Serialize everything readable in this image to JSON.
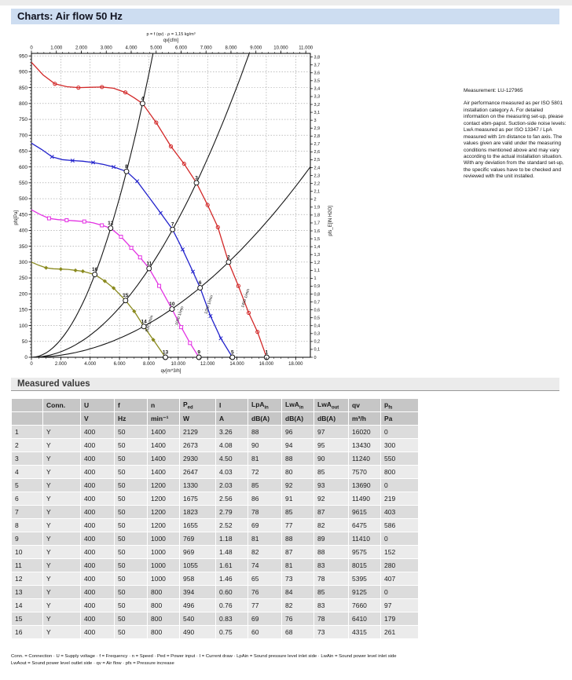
{
  "header": {
    "title": "Charts: Air flow 50 Hz"
  },
  "notes": {
    "measurement": "Measurement: LU-127965",
    "body": "Air performance measured as per ISO 5801 installation category A. For detailed information on the measuring set-up, please contact ebm-papst. Suction-side noise levels: LwA measured as per ISO 13347 / LpA measured with 1m distance to fan axis. The values given are valid under the measuring conditions mentioned above and may vary according to the actual installation situation. With any deviation from the standard set-up, the specific values have to be checked and reviewed with the unit installed."
  },
  "chart_data": {
    "type": "line",
    "title": "p = f (qv) · ρ = 1,15 kg/m³",
    "top_axis": {
      "label": "qv[cfm]",
      "tick_values": [
        0,
        1000,
        2000,
        3000,
        4000,
        5000,
        6000,
        7000,
        8000,
        9000,
        10000,
        11000
      ],
      "tick_labels": [
        "0",
        "1.000",
        "2.000",
        "3.000",
        "4.000",
        "5.000",
        "6.000",
        "7.000",
        "8.000",
        "9.000",
        "10.000",
        "11.000"
      ],
      "m3h_per_cfm": 1.699,
      "minor_step": 250
    },
    "bottom_axis": {
      "label": "qv[m^3/h]",
      "tick_values": [
        0,
        2000,
        4000,
        6000,
        8000,
        10000,
        12000,
        14000,
        16000,
        18000
      ],
      "tick_labels": [
        "0",
        "2.000",
        "4.000",
        "6.000",
        "8.000",
        "10.000",
        "12.000",
        "14.000",
        "16.000",
        "18.000"
      ],
      "minor_step": 500,
      "max": 19000
    },
    "left_axis": {
      "label": "pfs[Pa]",
      "tick_values": [
        0,
        50,
        100,
        150,
        200,
        250,
        300,
        350,
        400,
        450,
        500,
        550,
        600,
        650,
        700,
        750,
        800,
        850,
        900,
        950
      ],
      "tick_labels": [
        "0",
        "50",
        "100",
        "150",
        "200",
        "250",
        "300",
        "350",
        "400",
        "450",
        "500",
        "550",
        "600",
        "650",
        "700",
        "750",
        "800",
        "850",
        "900",
        "950"
      ],
      "minor_step": 10,
      "max": 958
    },
    "right_axis": {
      "label": "pfs_E[IN H2O]",
      "pa_per_unit": 249.089,
      "step": 0.1,
      "tick_labels": [
        "0",
        "0,1",
        "0,2",
        "0,3",
        "0,4",
        "0,5",
        "0,6",
        "0,7",
        "0,8",
        "0,9",
        "1",
        "1,1",
        "1,2",
        "1,3",
        "1,4",
        "1,5",
        "1,6",
        "1,7",
        "1,8",
        "1,9",
        "2",
        "2,1",
        "2,2",
        "2,3",
        "2,4",
        "2,5",
        "2,6",
        "2,7",
        "2,8",
        "2,9",
        "3",
        "3,1",
        "3,2",
        "3,3",
        "3,4",
        "3,5",
        "3,6",
        "3,7",
        "3,8"
      ]
    },
    "series": [
      {
        "name": "1400 min-1",
        "color": "#d22828",
        "marker": "circle",
        "speed_label": {
          "text": "1400 1/min",
          "q": 14650,
          "p": 185,
          "angle": -72
        },
        "points": [
          [
            0,
            930
          ],
          [
            800,
            890
          ],
          [
            1600,
            862
          ],
          [
            2400,
            853
          ],
          [
            3200,
            850
          ],
          [
            4000,
            851
          ],
          [
            4800,
            852
          ],
          [
            5600,
            848
          ],
          [
            6400,
            835
          ],
          [
            7000,
            818
          ],
          [
            7570,
            800
          ],
          [
            8500,
            740
          ],
          [
            9500,
            665
          ],
          [
            10400,
            610
          ],
          [
            11240,
            550
          ],
          [
            12000,
            480
          ],
          [
            12700,
            410
          ],
          [
            13430,
            300
          ],
          [
            14100,
            225
          ],
          [
            14800,
            140
          ],
          [
            15400,
            80
          ],
          [
            16020,
            0
          ]
        ],
        "markers": [
          [
            1600,
            862
          ],
          [
            3200,
            850
          ],
          [
            4800,
            852
          ],
          [
            6400,
            835
          ],
          [
            8500,
            740
          ],
          [
            9500,
            665
          ],
          [
            10400,
            610
          ],
          [
            12000,
            480
          ],
          [
            12700,
            410
          ],
          [
            14100,
            225
          ],
          [
            14800,
            140
          ],
          [
            15400,
            80
          ]
        ]
      },
      {
        "name": "1200 min-1",
        "color": "#2222cc",
        "marker": "x",
        "speed_label": {
          "text": "1200 1/min",
          "q": 12150,
          "p": 165,
          "angle": -72
        },
        "points": [
          [
            0,
            675
          ],
          [
            700,
            655
          ],
          [
            1400,
            632
          ],
          [
            2100,
            623
          ],
          [
            2800,
            620
          ],
          [
            3500,
            618
          ],
          [
            4200,
            614
          ],
          [
            4900,
            608
          ],
          [
            5600,
            600
          ],
          [
            6475,
            586
          ],
          [
            7200,
            555
          ],
          [
            8000,
            505
          ],
          [
            8800,
            455
          ],
          [
            9615,
            403
          ],
          [
            10300,
            340
          ],
          [
            11000,
            270
          ],
          [
            11490,
            219
          ],
          [
            12200,
            130
          ],
          [
            12900,
            60
          ],
          [
            13690,
            0
          ]
        ],
        "markers": [
          [
            1400,
            632
          ],
          [
            2800,
            620
          ],
          [
            4200,
            614
          ],
          [
            5600,
            600
          ],
          [
            7200,
            555
          ],
          [
            8800,
            455
          ],
          [
            10300,
            340
          ],
          [
            11000,
            270
          ],
          [
            12200,
            130
          ],
          [
            12900,
            60
          ]
        ]
      },
      {
        "name": "1000 min-1",
        "color": "#e332e3",
        "marker": "square",
        "speed_label": {
          "text": "1000 1/min",
          "q": 10150,
          "p": 130,
          "angle": -72
        },
        "points": [
          [
            0,
            465
          ],
          [
            600,
            450
          ],
          [
            1200,
            438
          ],
          [
            1800,
            434
          ],
          [
            2400,
            432
          ],
          [
            3000,
            430
          ],
          [
            3600,
            428
          ],
          [
            4200,
            424
          ],
          [
            4800,
            416
          ],
          [
            5395,
            407
          ],
          [
            6100,
            380
          ],
          [
            6800,
            345
          ],
          [
            7400,
            315
          ],
          [
            8015,
            280
          ],
          [
            8700,
            225
          ],
          [
            9575,
            152
          ],
          [
            10200,
            95
          ],
          [
            10800,
            45
          ],
          [
            11410,
            0
          ]
        ],
        "markers": [
          [
            1200,
            438
          ],
          [
            2400,
            432
          ],
          [
            3600,
            428
          ],
          [
            4800,
            416
          ],
          [
            6100,
            380
          ],
          [
            6800,
            345
          ],
          [
            7400,
            315
          ],
          [
            8700,
            225
          ],
          [
            10200,
            95
          ],
          [
            10800,
            45
          ]
        ]
      },
      {
        "name": "800 min-1",
        "color": "#8a8a1e",
        "marker": "diamond",
        "speed_label": {
          "text": "800 1/min",
          "q": 8100,
          "p": 105,
          "angle": -72
        },
        "points": [
          [
            0,
            300
          ],
          [
            500,
            290
          ],
          [
            1000,
            282
          ],
          [
            1500,
            279
          ],
          [
            2000,
            278
          ],
          [
            2500,
            277
          ],
          [
            3000,
            274
          ],
          [
            3500,
            271
          ],
          [
            4315,
            261
          ],
          [
            5000,
            240
          ],
          [
            5600,
            218
          ],
          [
            6410,
            179
          ],
          [
            7000,
            145
          ],
          [
            7660,
            97
          ],
          [
            8300,
            55
          ],
          [
            9125,
            0
          ]
        ],
        "markers": [
          [
            1000,
            282
          ],
          [
            2000,
            278
          ],
          [
            3000,
            274
          ],
          [
            3500,
            271
          ],
          [
            5000,
            240
          ],
          [
            5600,
            218
          ],
          [
            7000,
            145
          ],
          [
            8300,
            55
          ]
        ]
      }
    ],
    "system_curves": [
      {
        "k": 1.396e-05
      },
      {
        "k": 4.3537e-06
      },
      {
        "k": 1.6634e-06
      }
    ],
    "operating_points": [
      {
        "n": "1",
        "q": 16020,
        "p": 0
      },
      {
        "n": "2",
        "q": 13430,
        "p": 300
      },
      {
        "n": "3",
        "q": 11240,
        "p": 550
      },
      {
        "n": "4",
        "q": 7570,
        "p": 800
      },
      {
        "n": "5",
        "q": 13690,
        "p": 0
      },
      {
        "n": "6",
        "q": 11490,
        "p": 219
      },
      {
        "n": "7",
        "q": 9615,
        "p": 403
      },
      {
        "n": "8",
        "q": 6475,
        "p": 586
      },
      {
        "n": "9",
        "q": 11410,
        "p": 0
      },
      {
        "n": "10",
        "q": 9575,
        "p": 152
      },
      {
        "n": "11",
        "q": 8015,
        "p": 280
      },
      {
        "n": "12",
        "q": 5395,
        "p": 407
      },
      {
        "n": "13",
        "q": 9125,
        "p": 0
      },
      {
        "n": "14",
        "q": 7660,
        "p": 97
      },
      {
        "n": "15",
        "q": 6410,
        "p": 179
      },
      {
        "n": "16",
        "q": 4315,
        "p": 261
      }
    ]
  },
  "table": {
    "section_title": "Measured values",
    "columns": [
      {
        "base": "",
        "sub": ""
      },
      {
        "base": "Conn.",
        "sub": ""
      },
      {
        "base": "U",
        "sub": ""
      },
      {
        "base": "f",
        "sub": ""
      },
      {
        "base": "n",
        "sub": ""
      },
      {
        "base": "P",
        "sub": "ed"
      },
      {
        "base": "I",
        "sub": ""
      },
      {
        "base": "LpA",
        "sub": "in"
      },
      {
        "base": "LwA",
        "sub": "in"
      },
      {
        "base": "LwA",
        "sub": "out"
      },
      {
        "base": "qv",
        "sub": ""
      },
      {
        "base": "p",
        "sub": "fs"
      }
    ],
    "units": [
      "",
      "",
      "V",
      "Hz",
      "min⁻¹",
      "W",
      "A",
      "dB(A)",
      "dB(A)",
      "dB(A)",
      "m³/h",
      "Pa"
    ],
    "rows": [
      [
        "1",
        "Y",
        "400",
        "50",
        "1400",
        "2129",
        "3.26",
        "88",
        "96",
        "97",
        "16020",
        "0"
      ],
      [
        "2",
        "Y",
        "400",
        "50",
        "1400",
        "2673",
        "4.08",
        "90",
        "94",
        "95",
        "13430",
        "300"
      ],
      [
        "3",
        "Y",
        "400",
        "50",
        "1400",
        "2930",
        "4.50",
        "81",
        "88",
        "90",
        "11240",
        "550"
      ],
      [
        "4",
        "Y",
        "400",
        "50",
        "1400",
        "2647",
        "4.03",
        "72",
        "80",
        "85",
        "7570",
        "800"
      ],
      [
        "5",
        "Y",
        "400",
        "50",
        "1200",
        "1330",
        "2.03",
        "85",
        "92",
        "93",
        "13690",
        "0"
      ],
      [
        "6",
        "Y",
        "400",
        "50",
        "1200",
        "1675",
        "2.56",
        "86",
        "91",
        "92",
        "11490",
        "219"
      ],
      [
        "7",
        "Y",
        "400",
        "50",
        "1200",
        "1823",
        "2.79",
        "78",
        "85",
        "87",
        "9615",
        "403"
      ],
      [
        "8",
        "Y",
        "400",
        "50",
        "1200",
        "1655",
        "2.52",
        "69",
        "77",
        "82",
        "6475",
        "586"
      ],
      [
        "9",
        "Y",
        "400",
        "50",
        "1000",
        "769",
        "1.18",
        "81",
        "88",
        "89",
        "11410",
        "0"
      ],
      [
        "10",
        "Y",
        "400",
        "50",
        "1000",
        "969",
        "1.48",
        "82",
        "87",
        "88",
        "9575",
        "152"
      ],
      [
        "11",
        "Y",
        "400",
        "50",
        "1000",
        "1055",
        "1.61",
        "74",
        "81",
        "83",
        "8015",
        "280"
      ],
      [
        "12",
        "Y",
        "400",
        "50",
        "1000",
        "958",
        "1.46",
        "65",
        "73",
        "78",
        "5395",
        "407"
      ],
      [
        "13",
        "Y",
        "400",
        "50",
        "800",
        "394",
        "0.60",
        "76",
        "84",
        "85",
        "9125",
        "0"
      ],
      [
        "14",
        "Y",
        "400",
        "50",
        "800",
        "496",
        "0.76",
        "77",
        "82",
        "83",
        "7660",
        "97"
      ],
      [
        "15",
        "Y",
        "400",
        "50",
        "800",
        "540",
        "0.83",
        "69",
        "76",
        "78",
        "6410",
        "179"
      ],
      [
        "16",
        "Y",
        "400",
        "50",
        "800",
        "490",
        "0.75",
        "60",
        "68",
        "73",
        "4315",
        "261"
      ]
    ],
    "footnote_line1": "Conn. = Connection · U = Supply voltage · f = Frequency · n = Speed · Ped = Power input · I = Current draw · LpAin = Sound pressure level inlet side · LwAin = Sound power level inlet side",
    "footnote_line2": "LwAout = Sound power level outlet side · qv = Air flow · pfs = Pressure increase"
  },
  "colors": {
    "title_bar_bg": "#cdddf1",
    "section_bar_bg": "#ebebeb",
    "table_header_bg": "#c6c6c6",
    "row_odd_bg": "#dcdcdc",
    "row_even_bg": "#ebebeb",
    "grid": "#9a9a9a",
    "system_curve": "#161616"
  }
}
